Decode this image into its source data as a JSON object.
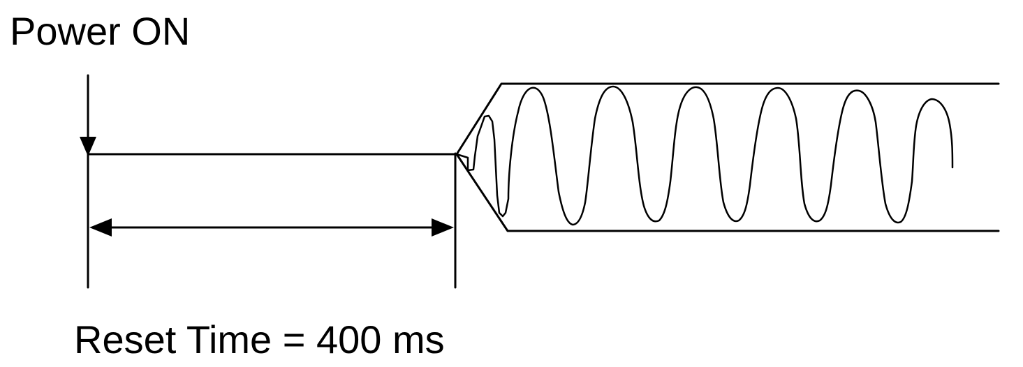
{
  "diagram": {
    "power_on_label": "Power ON",
    "reset_time_label": "Reset Time = 400 ms",
    "line_color": "#000000",
    "background_color": "#ffffff"
  }
}
